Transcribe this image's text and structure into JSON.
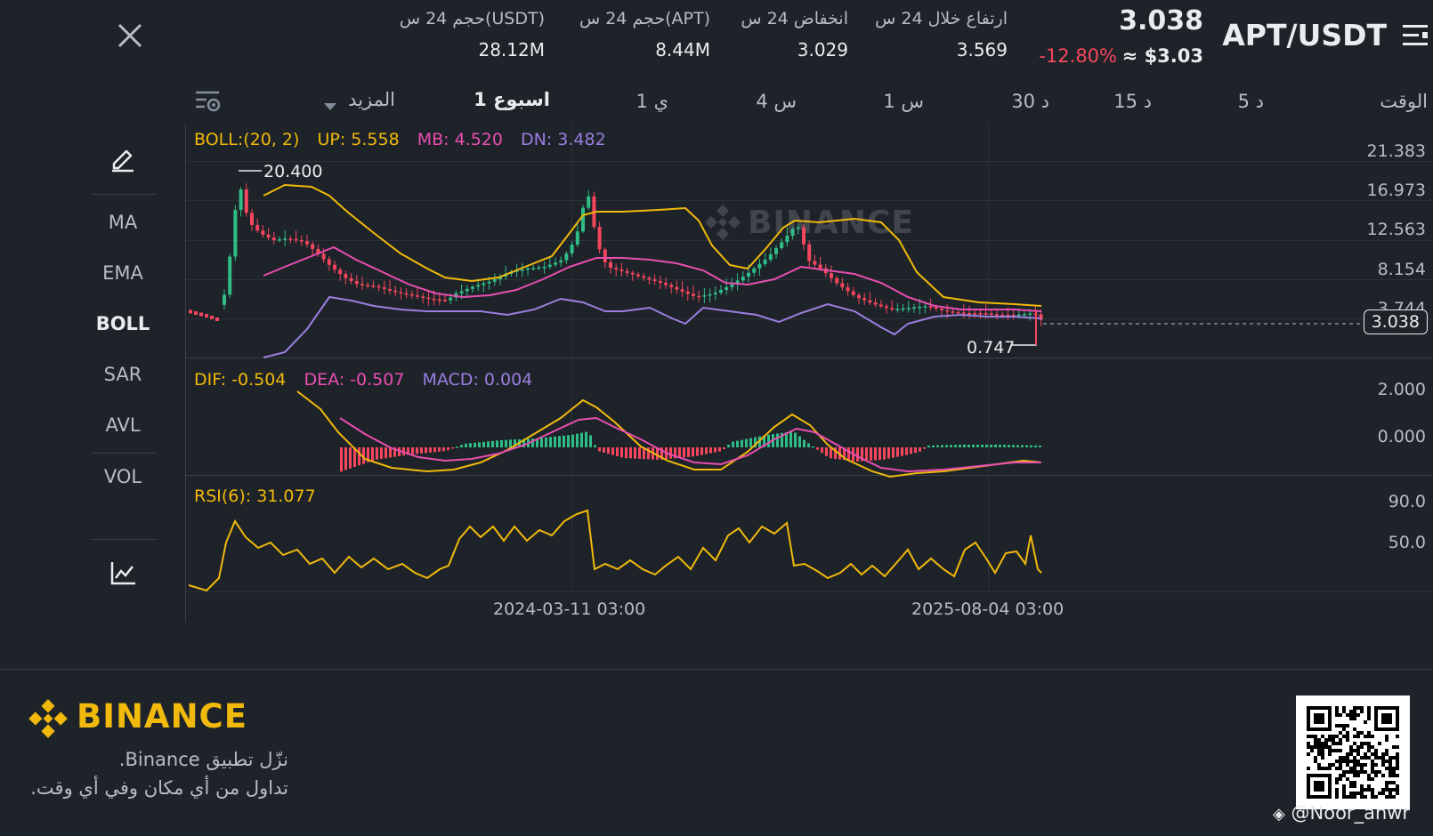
{
  "header": {
    "pair": "APT/USDT",
    "price": "3.038",
    "change_pct": "-12.80%",
    "price_usd": "≈ $3.03",
    "stats": [
      {
        "label": "ارتفاع خلال 24 س",
        "value": "3.569"
      },
      {
        "label": "انخفاض 24 س",
        "value": "3.029"
      },
      {
        "label": "حجم 24 س(APT)",
        "value": "8.44M"
      },
      {
        "label": "حجم 24 س(USDT)",
        "value": "28.12M"
      }
    ]
  },
  "intervals": {
    "time": "الوقت",
    "m5": "5 د",
    "m15": "15 د",
    "m30": "30 د",
    "h1": "1 س",
    "h4": "4 س",
    "d1": "1 ي",
    "w1": "1 اسبوع",
    "more": "المزيد"
  },
  "indicators": {
    "items": [
      "MA",
      "EMA",
      "BOLL",
      "SAR",
      "AVL",
      "VOL"
    ],
    "active": "BOLL"
  },
  "legend": {
    "boll": {
      "name": "BOLL:(20, 2)",
      "up": "UP: 5.558",
      "mb": "MB: 4.520",
      "dn": "DN: 3.482"
    },
    "macd": {
      "dif": "DIF: -0.504",
      "dea": "DEA: -0.507",
      "macd": "MACD: 0.004"
    },
    "rsi": "RSI(6): 31.077"
  },
  "axes": {
    "price_ticks": [
      "21.383",
      "16.973",
      "12.563",
      "8.154",
      "3.744"
    ],
    "current_price_tag": "3.038",
    "macd_ticks": [
      "2.000",
      "0.000"
    ],
    "rsi_ticks": [
      "90.0",
      "50.0"
    ],
    "dates": [
      "2024-03-11 03:00",
      "2025-08-04 03:00"
    ]
  },
  "annotations": {
    "high": "20.400",
    "low": "0.747"
  },
  "watermark": "BINANCE",
  "footer": {
    "brand": "BINANCE",
    "line1": "نزّل تطبيق Binance.",
    "line2": "تداول من أي مكان وفي أي وقت.",
    "credit": "@Noor_anwr"
  },
  "colors": {
    "background": "#1e2329",
    "up": "#2ebd85",
    "down": "#f6465d",
    "boll_up": "#f0b90b",
    "boll_mb": "#e84eb1",
    "boll_dn": "#9b7ee0",
    "brand": "#f0b90b"
  },
  "chart_data": {
    "type": "candlestick",
    "series": [
      {
        "name": "RSI(6)",
        "last": 31.077
      },
      {
        "name": "DIF",
        "last": -0.504
      },
      {
        "name": "DEA",
        "last": -0.507
      },
      {
        "name": "MACD",
        "last": 0.004
      }
    ],
    "boll": {
      "up": 5.558,
      "mb": 4.52,
      "dn": 3.482
    },
    "last_price": 3.038,
    "high_marker": 20.4,
    "low_marker": 0.747
  }
}
